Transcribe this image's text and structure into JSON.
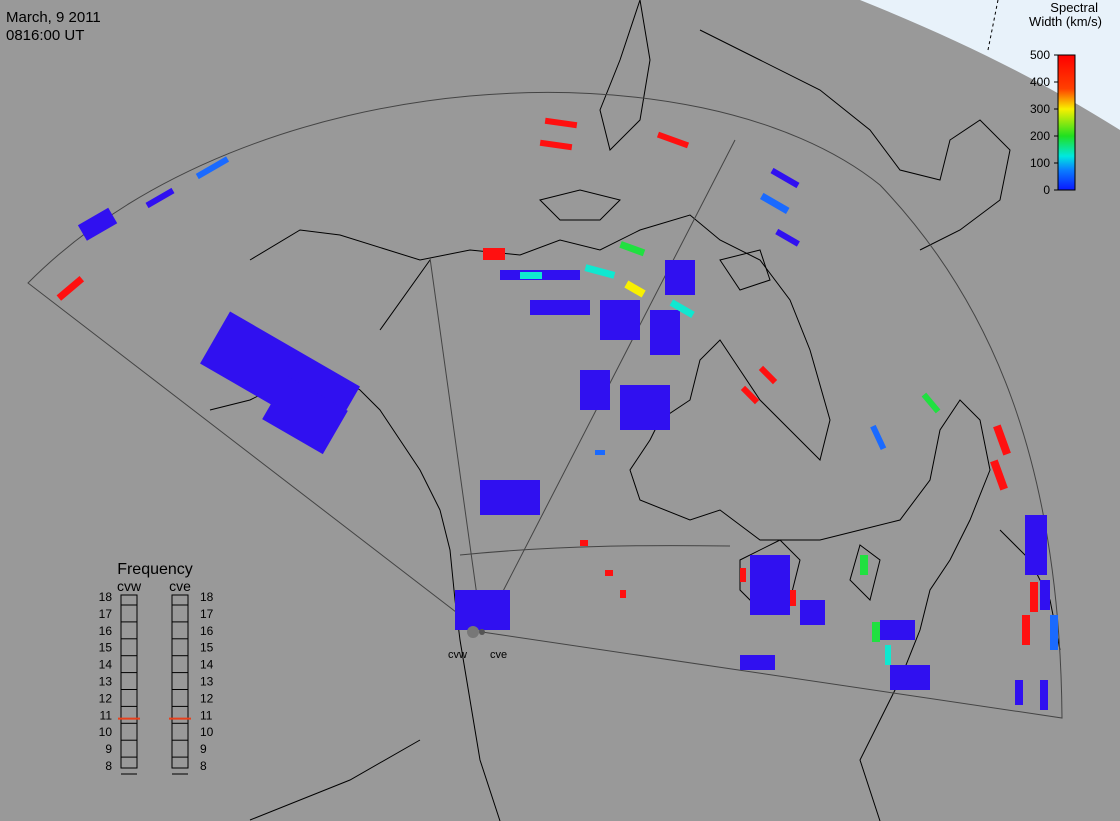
{
  "header": {
    "date": "March, 9 2011",
    "time": "0816:00 UT"
  },
  "colorbar": {
    "title_line1": "Spectral",
    "title_line2": "Width (km/s)",
    "range": [
      0,
      500
    ],
    "ticks": [
      0,
      100,
      200,
      300,
      400,
      500
    ]
  },
  "frequency": {
    "title": "Frequency",
    "range": [
      8,
      18
    ],
    "ticks": [
      8,
      9,
      10,
      11,
      12,
      13,
      14,
      15,
      16,
      17,
      18
    ],
    "radars": [
      {
        "name": "cvw",
        "value": 10.8,
        "color": "#e8401c"
      },
      {
        "name": "cve",
        "value": 10.8,
        "color": "#e8401c"
      }
    ]
  },
  "stations": [
    "cvw",
    "cve"
  ]
}
